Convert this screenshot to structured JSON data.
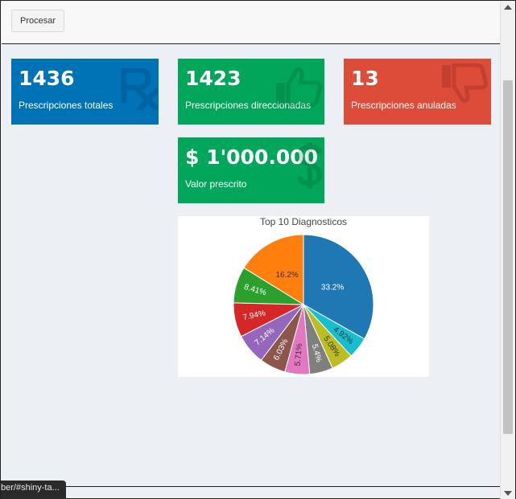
{
  "toolbar": {
    "process_label": "Procesar"
  },
  "boxes": [
    {
      "value": "1436",
      "label": "Prescripciones totales",
      "color": "#0073b7",
      "icon": "rx-icon"
    },
    {
      "value": "1423",
      "label": "Prescripciones direccionadas",
      "color": "#00a65a",
      "icon": "thumbs-up-icon"
    },
    {
      "value": "13",
      "label": "Prescripciones anuladas",
      "color": "#dd4b39",
      "icon": "thumbs-down-icon"
    },
    {
      "value": "$ 1'000.000",
      "label": "Valor prescrito",
      "color": "#00a65a",
      "icon": "dollar-icon"
    }
  ],
  "chart_data": {
    "type": "pie",
    "title": "Top 10 Diagnosticos",
    "slices": [
      {
        "label": "33.2%",
        "value": 33.2,
        "color": "#1f77b4"
      },
      {
        "label": "4.92%",
        "value": 4.92,
        "color": "#17becf"
      },
      {
        "label": "5.08%",
        "value": 5.08,
        "color": "#bcbd22"
      },
      {
        "label": "5.4%",
        "value": 5.4,
        "color": "#7f7f7f"
      },
      {
        "label": "5.71%",
        "value": 5.71,
        "color": "#e377c2"
      },
      {
        "label": "6.03%",
        "value": 6.03,
        "color": "#8c564b"
      },
      {
        "label": "7.14%",
        "value": 7.14,
        "color": "#9467bd"
      },
      {
        "label": "7.94%",
        "value": 7.94,
        "color": "#d62728"
      },
      {
        "label": "8.41%",
        "value": 8.41,
        "color": "#2ca02c"
      },
      {
        "label": "16.2%",
        "value": 16.2,
        "color": "#ff7f0e"
      }
    ],
    "legend": "none"
  },
  "status_bar": {
    "url": "ber/#shiny-ta..."
  }
}
